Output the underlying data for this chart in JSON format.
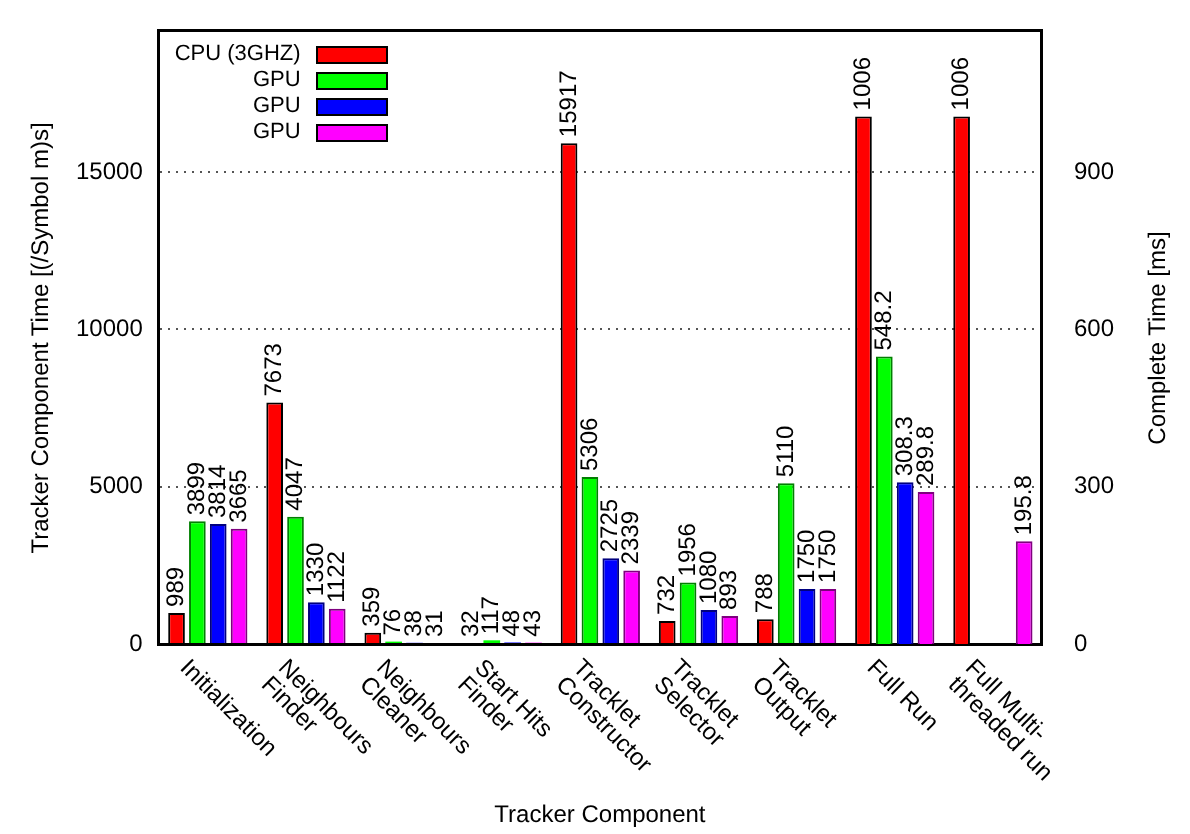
{
  "chart_data": {
    "type": "bar",
    "xlabel": "Tracker Component",
    "ylabel": "Tracker Component Time [(/Symbol m)s]",
    "y2label": "Complete Time [ms]",
    "categories": [
      "Initialization",
      "Neighbours\nFinder",
      "Neighbours\nCleaner",
      "Start Hits\nFinder",
      "Tracklet\nConstructor",
      "Tracklet\nSelector",
      "Tracklet\nOutput",
      "Full Run",
      "Full Multi-\nthreaded run"
    ],
    "series": [
      {
        "name": "CPU (3GHZ)",
        "color": "#ff0000",
        "values": [
          989,
          7673,
          359,
          32,
          15917,
          732,
          788,
          null,
          null
        ]
      },
      {
        "name": "GPU",
        "color": "#00ff00",
        "values": [
          3899,
          4047,
          76,
          117,
          5306,
          1956,
          5110,
          null,
          null
        ]
      },
      {
        "name": "GPU",
        "color": "#0000ff",
        "values": [
          3814,
          1330,
          38,
          48,
          2725,
          1080,
          1750,
          null,
          null
        ]
      },
      {
        "name": "GPU",
        "color": "#ff00ff",
        "values": [
          3665,
          1122,
          31,
          43,
          2339,
          893,
          1750,
          null,
          null
        ]
      },
      {
        "color": "#ff0000",
        "axis": "y2",
        "values": [
          null,
          null,
          null,
          null,
          null,
          null,
          null,
          1006,
          1006
        ]
      },
      {
        "color": "#00ff00",
        "axis": "y2",
        "values": [
          null,
          null,
          null,
          null,
          null,
          null,
          null,
          548.2,
          null
        ]
      },
      {
        "color": "#0000ff",
        "axis": "y2",
        "values": [
          null,
          null,
          null,
          null,
          null,
          null,
          null,
          308.3,
          null
        ]
      },
      {
        "color": "#ff00ff",
        "axis": "y2",
        "values": [
          null,
          null,
          null,
          null,
          null,
          null,
          null,
          289.8,
          195.8
        ]
      }
    ],
    "ylim": [
      0,
      19500
    ],
    "yticks": [
      0,
      5000,
      10000,
      15000
    ],
    "y2lim": [
      0,
      1170
    ],
    "y2ticks": [
      0,
      300,
      600,
      900
    ],
    "grid": "y",
    "legend": "top left",
    "data_labels": true
  }
}
